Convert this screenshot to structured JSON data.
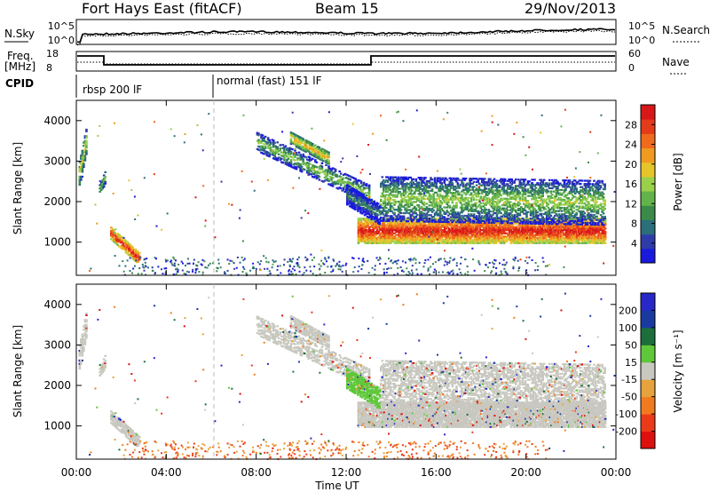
{
  "header": {
    "station": "Fort Hays East (fitACF)",
    "beam": "Beam 15",
    "date": "29/Nov/2013"
  },
  "noise_panel": {
    "left_label": "N.Sky",
    "left_ticks": [
      "10^5",
      "10^0"
    ],
    "right_label": "N.Search",
    "right_ticks": [
      "10^5",
      "10^0"
    ]
  },
  "freq_panel": {
    "left_label_line1": "Freq.",
    "left_label_line2": "[MHz]",
    "left_ticks": [
      "18",
      "8"
    ],
    "right_label": "Nave",
    "right_ticks": [
      "60",
      "0"
    ]
  },
  "cpid": {
    "label": "CPID",
    "segments": [
      {
        "text": "rbsp 200 lF",
        "start_hour": 0
      },
      {
        "text": "normal (fast) 151 lF",
        "start_hour": 6
      }
    ]
  },
  "chart_data": [
    {
      "type": "heatmap",
      "title": "",
      "ylabel": "Slant Range [km]",
      "xlabel": "Time UT",
      "ylim": [
        180,
        4500
      ],
      "xlim_hours": [
        0,
        24
      ],
      "yticks": [
        "1000",
        "2000",
        "3000",
        "4000"
      ],
      "xticks": [
        "00:00",
        "04:00",
        "08:00",
        "12:00",
        "16:00",
        "20:00",
        "00:00"
      ],
      "colorbar": {
        "label": "Power [dB]",
        "ticks": [
          "4",
          "8",
          "12",
          "16",
          "20",
          "24",
          "28"
        ],
        "colors": [
          "#1a1adf",
          "#2f3ba8",
          "#2a6f7a",
          "#3c8a4a",
          "#63b34b",
          "#9ad04a",
          "#e6c52b",
          "#f09a20",
          "#ef6a1c",
          "#e43b1b",
          "#d81818"
        ]
      }
    },
    {
      "type": "heatmap",
      "title": "",
      "ylabel": "Slant Range [km]",
      "xlabel": "Time UT",
      "ylim": [
        180,
        4500
      ],
      "xlim_hours": [
        0,
        24
      ],
      "yticks": [
        "1000",
        "2000",
        "3000",
        "4000"
      ],
      "xticks": [
        "00:00",
        "04:00",
        "08:00",
        "12:00",
        "16:00",
        "20:00",
        "00:00"
      ],
      "colorbar": {
        "label": "Velocity [m s⁻¹]",
        "ticks": [
          "200",
          "100",
          "50",
          "15",
          "-15",
          "-50",
          "-100",
          "-200"
        ],
        "colors": [
          "#2828c8",
          "#1a3aa0",
          "#1c6e3a",
          "#5fc83a",
          "#c8c8c0",
          "#e6a23c",
          "#f07a1e",
          "#ea3a1a",
          "#dd1010"
        ]
      }
    }
  ],
  "x_axis_title": "Time UT"
}
